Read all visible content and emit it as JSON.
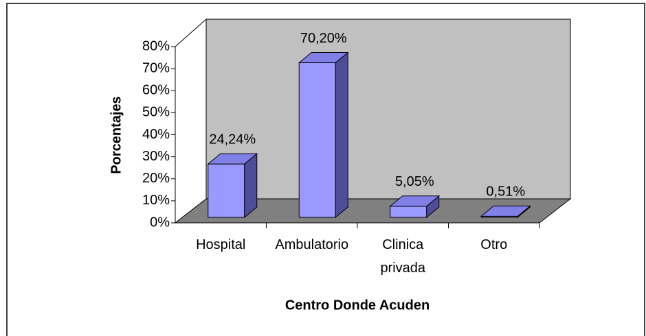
{
  "chart_data": {
    "type": "bar3d",
    "y_label": "Porcentajes",
    "x_label": "Centro Donde Acuden",
    "categories": [
      "Hospital",
      "Ambulatorio",
      "Clinica privada",
      "Otro"
    ],
    "values": [
      24.24,
      70.2,
      5.05,
      0.51
    ],
    "value_labels": [
      "24,24%",
      "70,20%",
      "5,05%",
      "0,51%"
    ],
    "color": "#9999ff",
    "ylim": [
      0,
      80
    ],
    "yticks": [
      {
        "value": 0,
        "label": "0%"
      },
      {
        "value": 10,
        "label": "10%"
      },
      {
        "value": 20,
        "label": "20%"
      },
      {
        "value": 30,
        "label": "30%"
      },
      {
        "value": 40,
        "label": "40%"
      },
      {
        "value": 50,
        "label": "50%"
      },
      {
        "value": 60,
        "label": "60%"
      },
      {
        "value": 70,
        "label": "70%"
      },
      {
        "value": 80,
        "label": "80%"
      }
    ]
  }
}
